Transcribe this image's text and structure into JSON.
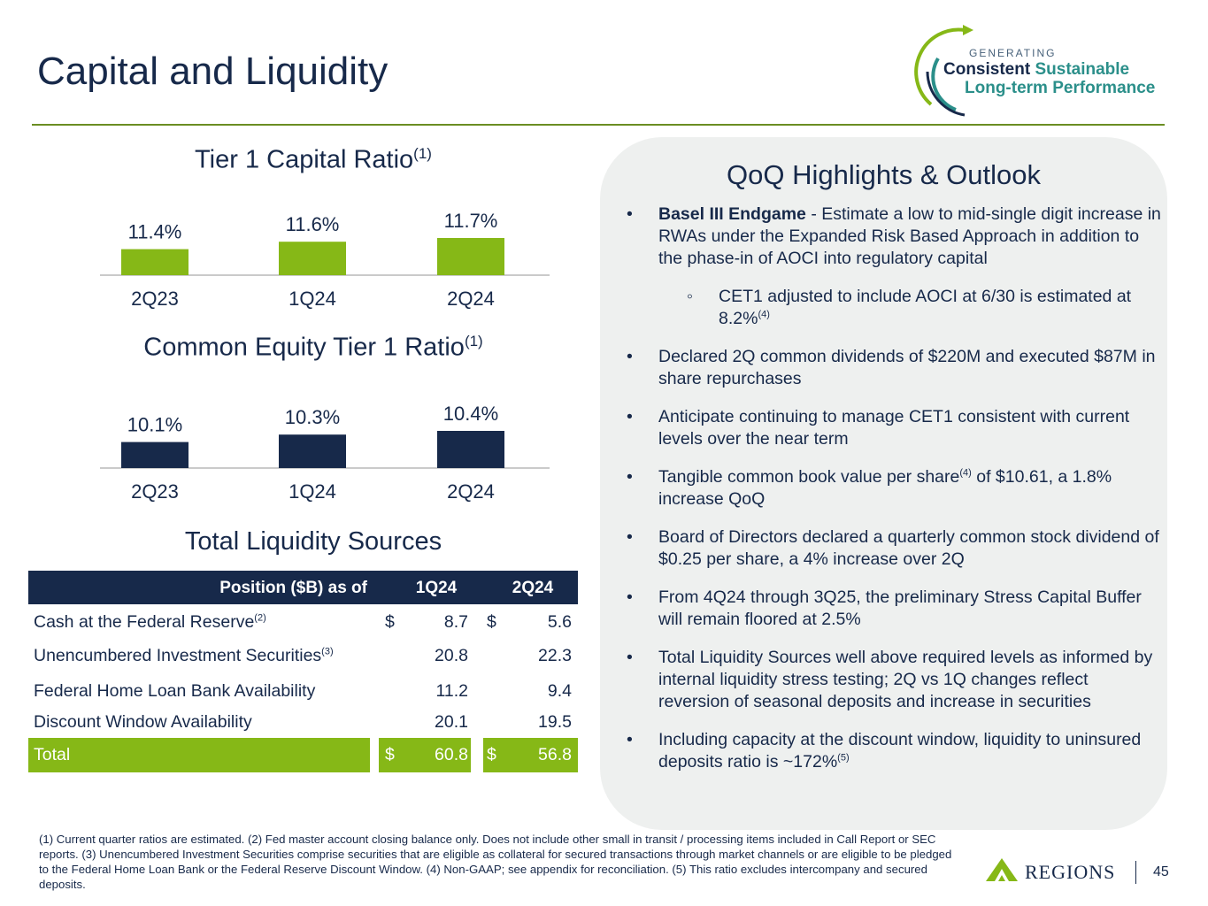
{
  "title": "Capital and Liquidity",
  "logo": {
    "generating": "GENERATING",
    "line1a": "Consistent",
    "line1b": "Sustainable",
    "line2": "Long-term Performance"
  },
  "chart_data": [
    {
      "type": "bar",
      "title": "Tier 1 Capital Ratio",
      "title_note": "(1)",
      "categories": [
        "2Q23",
        "1Q24",
        "2Q24"
      ],
      "values": [
        11.4,
        11.6,
        11.7
      ],
      "labels": [
        "11.4%",
        "11.6%",
        "11.7%"
      ],
      "color": "#86b817"
    },
    {
      "type": "bar",
      "title": "Common Equity Tier 1 Ratio",
      "title_note": "(1)",
      "categories": [
        "2Q23",
        "1Q24",
        "2Q24"
      ],
      "values": [
        10.1,
        10.3,
        10.4
      ],
      "labels": [
        "10.1%",
        "10.3%",
        "10.4%"
      ],
      "color": "#17294a"
    }
  ],
  "liquidity": {
    "title": "Total Liquidity Sources",
    "header": {
      "label": "Position ($B) as of",
      "c1": "1Q24",
      "c2": "2Q24"
    },
    "rows": [
      {
        "label": "Cash at the Federal Reserve",
        "note": "(2)",
        "d1": "$",
        "v1": "8.7",
        "d2": "$",
        "v2": "5.6"
      },
      {
        "label": "Unencumbered Investment Securities",
        "note": "(3)",
        "d1": "",
        "v1": "20.8",
        "d2": "",
        "v2": "22.3"
      },
      {
        "label": "Federal Home Loan Bank Availability",
        "note": "",
        "d1": "",
        "v1": "11.2",
        "d2": "",
        "v2": "9.4"
      },
      {
        "label": "Discount Window Availability",
        "note": "",
        "d1": "",
        "v1": "20.1",
        "d2": "",
        "v2": "19.5"
      }
    ],
    "total": {
      "label": "Total",
      "d1": "$",
      "v1": "60.8",
      "d2": "$",
      "v2": "56.8"
    }
  },
  "highlights": {
    "title": "QoQ Highlights & Outlook",
    "b1_bold": "Basel III Endgame",
    "b1_text": " - Estimate a low to mid-single digit increase in RWAs under the Expanded Risk Based Approach in addition to the phase-in of AOCI into regulatory capital",
    "sub1": "CET1 adjusted to include AOCI at 6/30 is estimated at 8.2%",
    "sub1_note": "(4)",
    "b2": "Declared 2Q common dividends of $220M and executed $87M in share repurchases",
    "b3": "Anticipate continuing to manage CET1 consistent with current levels over the near term",
    "b4a": "Tangible common book value per share",
    "b4_note": "(4)",
    "b4b": " of $10.61, a 1.8% increase QoQ",
    "b5": "Board of Directors declared a quarterly common stock dividend of $0.25 per share, a 4% increase over 2Q",
    "b6": "From 4Q24 through 3Q25, the preliminary Stress Capital Buffer will remain floored at 2.5%",
    "b7": "Total Liquidity Sources well above required levels as informed by internal liquidity stress testing; 2Q vs 1Q changes reflect reversion of seasonal deposits and increase in securities",
    "b8": "Including capacity at the discount window, liquidity to uninsured deposits ratio is ~172%",
    "b8_note": "(5)"
  },
  "footnote": "(1) Current quarter ratios are estimated.  (2) Fed master account closing balance only. Does not include other small in transit / processing items included in Call Report or SEC reports. (3) Unencumbered Investment Securities comprise securities that are eligible as collateral for secured transactions through market channels or are eligible to be pledged to the Federal Home Loan Bank or the Federal Reserve Discount Window. (4) Non-GAAP; see appendix for reconciliation. (5) This ratio excludes intercompany and secured deposits.",
  "brand": "REGIONS",
  "page_number": "45"
}
